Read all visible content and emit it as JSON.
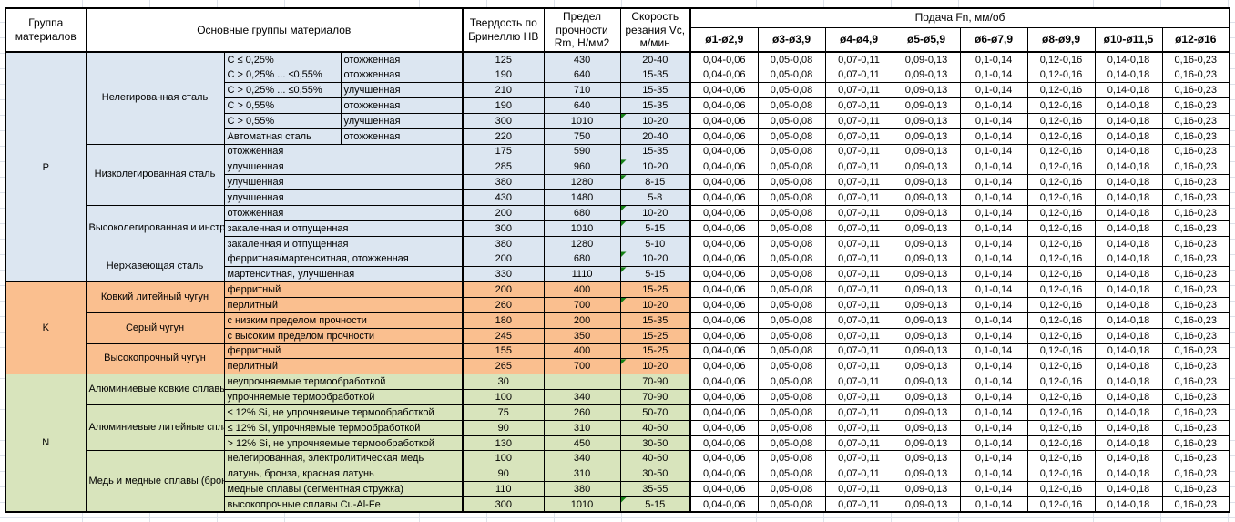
{
  "header": {
    "group_col": "Группа материалов",
    "main_groups_col": "Основные группы материалов",
    "hardness_col": "Твердость по Бринеллю HB",
    "strength_col": "Предел прочности Rm, Н/мм2",
    "speed_col": "Скорость резания Vc, м/мин",
    "feed_title": "Подача Fn, мм/об",
    "feed_cols": [
      "ø1-ø2,9",
      "ø3-ø3,9",
      "ø4-ø4,9",
      "ø5-ø5,9",
      "ø6-ø7,9",
      "ø8-ø9,9",
      "ø10-ø11,5",
      "ø12-ø16"
    ]
  },
  "feed_values": [
    "0,04-0,06",
    "0,05-0,08",
    "0,07-0,11",
    "0,09-0,13",
    "0,1-0,14",
    "0,12-0,16",
    "0,14-0,18",
    "0,16-0,23"
  ],
  "colors": {
    "group_P": "#dce6f1",
    "group_K": "#fabf8f",
    "group_N": "#d8e4bc",
    "error_indicator": "#178117",
    "border": "#000000",
    "gridline": "#dde2ea"
  },
  "groups": [
    {
      "id": "P",
      "color": "#dce6f1",
      "subgroups": [
        {
          "name": "Нелегированная сталь",
          "rows": [
            {
              "spec": "C ≤ 0,25%",
              "state": "отожженная",
              "hb": "125",
              "rm": "430",
              "vc": "20-40",
              "flag": false
            },
            {
              "spec": "C > 0,25% ... ≤0,55%",
              "state": "отожженная",
              "hb": "190",
              "rm": "640",
              "vc": "15-35",
              "flag": false
            },
            {
              "spec": "C > 0,25% ... ≤0,55%",
              "state": "улучшенная",
              "hb": "210",
              "rm": "710",
              "vc": "15-35",
              "flag": false
            },
            {
              "spec": "C > 0,55%",
              "state": "отожженная",
              "hb": "190",
              "rm": "640",
              "vc": "15-35",
              "flag": false
            },
            {
              "spec": "C > 0,55%",
              "state": "улучшенная",
              "hb": "300",
              "rm": "1010",
              "vc": "10-20",
              "flag": true
            },
            {
              "spec": "Автоматная сталь",
              "state": "отожженная",
              "hb": "220",
              "rm": "750",
              "vc": "20-40",
              "flag": false
            }
          ]
        },
        {
          "name": "Низколегированная сталь",
          "rows": [
            {
              "desc": "отожженная",
              "hb": "175",
              "rm": "590",
              "vc": "15-35",
              "flag": false
            },
            {
              "desc": "улучшенная",
              "hb": "285",
              "rm": "960",
              "vc": "10-20",
              "flag": true
            },
            {
              "desc": "улучшенная",
              "hb": "380",
              "rm": "1280",
              "vc": "8-15",
              "flag": true
            },
            {
              "desc": "улучшенная",
              "hb": "430",
              "rm": "1480",
              "vc": "5-8",
              "flag": false
            }
          ]
        },
        {
          "name": "Высоколегированная и инструментальная сталь",
          "rows": [
            {
              "desc": "отожженная",
              "hb": "200",
              "rm": "680",
              "vc": "10-20",
              "flag": true
            },
            {
              "desc": "закаленная и отпущенная",
              "hb": "300",
              "rm": "1010",
              "vc": "5-15",
              "flag": true
            },
            {
              "desc": "закаленная и отпущенная",
              "hb": "380",
              "rm": "1280",
              "vc": "5-10",
              "flag": false
            }
          ]
        },
        {
          "name": "Нержавеющая сталь",
          "rows": [
            {
              "desc": "ферритная/мартенситная, отожженная",
              "hb": "200",
              "rm": "680",
              "vc": "10-20",
              "flag": true
            },
            {
              "desc": "мартенситная, улучшенная",
              "hb": "330",
              "rm": "1110",
              "vc": "5-15",
              "flag": true
            }
          ]
        }
      ]
    },
    {
      "id": "K",
      "color": "#fabf8f",
      "subgroups": [
        {
          "name": "Ковкий литейный чугун",
          "rows": [
            {
              "desc": "ферритный",
              "hb": "200",
              "rm": "400",
              "vc": "15-25",
              "flag": false
            },
            {
              "desc": "перлитный",
              "hb": "260",
              "rm": "700",
              "vc": "10-20",
              "flag": true
            }
          ]
        },
        {
          "name": "Серый чугун",
          "rows": [
            {
              "desc": "с низким пределом прочности",
              "hb": "180",
              "rm": "200",
              "vc": "15-35",
              "flag": false
            },
            {
              "desc": "с высоким пределом прочности",
              "hb": "245",
              "rm": "350",
              "vc": "15-25",
              "flag": false
            }
          ]
        },
        {
          "name": "Высокопрочный чугун",
          "rows": [
            {
              "desc": "ферритный",
              "hb": "155",
              "rm": "400",
              "vc": "15-25",
              "flag": false
            },
            {
              "desc": "перлитный",
              "hb": "265",
              "rm": "700",
              "vc": "10-20",
              "flag": true
            }
          ]
        }
      ]
    },
    {
      "id": "N",
      "color": "#d8e4bc",
      "subgroups": [
        {
          "name": "Алюминиевые ковкие сплавы",
          "rows": [
            {
              "desc": "неупрочняемые термообработкой",
              "hb": "30",
              "rm": "",
              "vc": "70-90",
              "flag": false
            },
            {
              "desc": "упрочняемые термообработкой",
              "hb": "100",
              "rm": "340",
              "vc": "70-90",
              "flag": false
            }
          ]
        },
        {
          "name": "Алюминиевые литейные сплавы",
          "rows": [
            {
              "desc": "≤ 12% Si, не упрочняемые термообработкой",
              "hb": "75",
              "rm": "260",
              "vc": "50-70",
              "flag": false
            },
            {
              "desc": "≤ 12% Si, упрочняемые термообработкой",
              "hb": "90",
              "rm": "310",
              "vc": "40-60",
              "flag": false
            },
            {
              "desc": "> 12% Si, не упрочняемые термообработкой",
              "hb": "130",
              "rm": "450",
              "vc": "30-50",
              "flag": false
            }
          ]
        },
        {
          "name": "Медь и медные сплавы (бронза/латунь)",
          "rows": [
            {
              "desc": "нелегированная, электролитическая медь",
              "hb": "100",
              "rm": "340",
              "vc": "40-60",
              "flag": false
            },
            {
              "desc": "латунь, бронза, красная латунь",
              "hb": "90",
              "rm": "310",
              "vc": "30-50",
              "flag": false
            },
            {
              "desc": "медные сплавы (сегментная стружка)",
              "hb": "110",
              "rm": "380",
              "vc": "35-55",
              "flag": false
            },
            {
              "desc": "высокопрочные сплавы Cu-Al-Fe",
              "hb": "300",
              "rm": "1010",
              "vc": "5-15",
              "flag": true
            }
          ]
        }
      ]
    }
  ]
}
